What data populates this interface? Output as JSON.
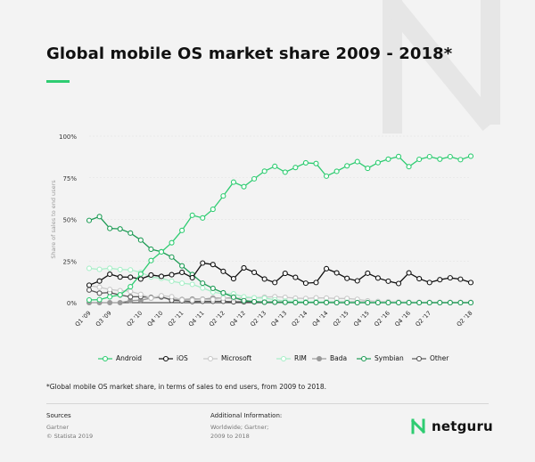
{
  "title": "Global mobile OS market share 2009 - 2018*",
  "footnote": "*Global mobile OS market share, in terms of sales to end users, from 2009 to 2018.",
  "sources": {
    "heading": "Sources",
    "lines": [
      "Gartner",
      "© Statista 2019"
    ]
  },
  "additional": {
    "heading": "Additional Information:",
    "lines": [
      "Worldwide; Gartner;",
      "2009 to 2018"
    ]
  },
  "brand": "netguru",
  "colors": {
    "accent": "#2ecc71",
    "background": "#f3f3f3"
  },
  "chart_data": {
    "type": "line",
    "ylabel": "Share of sales to end users",
    "yticks": [
      "0%",
      "25%",
      "50%",
      "75%",
      "100%"
    ],
    "ylim": [
      0,
      100
    ],
    "x": [
      "Q1 '09",
      "Q2 '09",
      "Q3 '09",
      "Q4 '09",
      "Q1 '10",
      "Q2 '10",
      "Q3 '10",
      "Q4 '10",
      "Q1 '11",
      "Q2 '11",
      "Q3 '11",
      "Q4 '11",
      "Q1 '12",
      "Q2 '12",
      "Q3 '12",
      "Q4 '12",
      "Q1 '13",
      "Q2 '13",
      "Q3 '13",
      "Q4 '13",
      "Q1 '14",
      "Q2 '14",
      "Q3 '14",
      "Q4 '14",
      "Q1 '15",
      "Q2 '15",
      "Q3 '15",
      "Q4 '15",
      "Q1 '16",
      "Q2 '16",
      "Q3 '16",
      "Q4 '16",
      "Q1 '17",
      "Q2 '17",
      "Q3 '17",
      "Q4 '17",
      "Q1 '18",
      "Q2 '18"
    ],
    "xtick_labels": [
      "Q1 '09",
      "Q3 '09",
      "Q2 '10",
      "Q4 '10",
      "Q2 '11",
      "Q4 '11",
      "Q2 '12",
      "Q4 '12",
      "Q2 '13",
      "Q4 '13",
      "Q2 '14",
      "Q4 '14",
      "Q2 '15",
      "Q4 '15",
      "Q2 '16",
      "Q4 '16",
      "Q2 '17",
      "Q2 '18"
    ],
    "grid": "horizontal",
    "legend_position": "bottom",
    "series": [
      {
        "name": "Android",
        "color": "#2ecc71",
        "marker_fill": "#ffffff",
        "values": [
          1.6,
          1.8,
          3.5,
          4.7,
          9.6,
          17.2,
          25.3,
          30.5,
          36.0,
          43.4,
          52.5,
          50.9,
          56.1,
          64.1,
          72.4,
          69.7,
          74.4,
          79.0,
          81.9,
          78.4,
          81.2,
          84.0,
          83.6,
          76.0,
          78.9,
          82.2,
          84.7,
          80.7,
          84.1,
          86.2,
          87.8,
          81.7,
          86.1,
          87.7,
          86.2,
          87.7,
          85.9,
          88.0
        ]
      },
      {
        "name": "iOS",
        "color": "#111111",
        "marker_fill": "#ffffff",
        "values": [
          10.5,
          13.0,
          17.1,
          15.4,
          15.3,
          14.2,
          16.6,
          15.8,
          16.8,
          18.2,
          15.0,
          23.8,
          22.9,
          18.8,
          14.4,
          20.9,
          18.2,
          14.2,
          12.1,
          17.6,
          15.2,
          11.7,
          12.1,
          20.4,
          17.9,
          14.6,
          13.1,
          17.7,
          14.8,
          12.9,
          11.5,
          17.9,
          14.4,
          12.1,
          13.8,
          14.9,
          14.1,
          12.1
        ]
      },
      {
        "name": "Microsoft",
        "color": "#c8c8c8",
        "marker_fill": "#ffffff",
        "values": [
          10.2,
          9.3,
          7.9,
          7.2,
          6.8,
          5.0,
          2.8,
          4.2,
          3.6,
          1.6,
          1.5,
          1.9,
          1.9,
          2.7,
          2.4,
          3.0,
          2.9,
          3.3,
          3.6,
          3.2,
          2.7,
          2.5,
          2.9,
          2.8,
          2.5,
          2.5,
          2.0,
          1.1,
          0.7,
          0.6,
          0.4,
          0.3,
          0.2,
          0.1,
          0.1,
          0.1,
          0.1,
          0.1
        ]
      },
      {
        "name": "RIM",
        "color": "#a8efc8",
        "marker_fill": "#ffffff",
        "values": [
          20.6,
          20.0,
          20.7,
          19.9,
          19.7,
          18.2,
          15.4,
          14.6,
          12.9,
          11.7,
          11.0,
          8.8,
          6.4,
          5.2,
          5.3,
          3.5,
          2.9,
          2.7,
          1.8,
          1.0,
          0.8,
          0.5,
          0.5,
          0.4,
          0.3,
          0.3,
          0.2,
          0.2,
          0.2,
          0.1,
          0.1,
          0.1,
          0.0,
          0.0,
          0.0,
          0.0,
          0.0,
          0.0
        ]
      },
      {
        "name": "Bada",
        "color": "#999999",
        "marker_fill": "#999999",
        "values": [
          0,
          0,
          0,
          0,
          1.2,
          1.5,
          2.7,
          3.3,
          1.9,
          1.9,
          2.2,
          2.1,
          2.7,
          2.7,
          3.0,
          1.3,
          0.7,
          0.4,
          0.3,
          0.2,
          0.1,
          0.1,
          0.1,
          0.1,
          0,
          0,
          0,
          0,
          0,
          0,
          0,
          0,
          0,
          0,
          0,
          0,
          0,
          0
        ]
      },
      {
        "name": "Symbian",
        "color": "#1e9b55",
        "marker_fill": "#ffffff",
        "values": [
          49.4,
          51.7,
          44.6,
          44.3,
          41.8,
          37.6,
          32.1,
          30.6,
          27.4,
          22.1,
          16.9,
          11.7,
          8.6,
          5.9,
          3.3,
          1.2,
          0.6,
          0.3,
          0.3,
          0.2,
          0.1,
          0.1,
          0.1,
          0.1,
          0,
          0,
          0,
          0,
          0,
          0,
          0,
          0,
          0,
          0,
          0,
          0,
          0,
          0
        ]
      },
      {
        "name": "Other",
        "color": "#555555",
        "marker_fill": "#ffffff",
        "values": [
          7.6,
          5.7,
          6.1,
          4.6,
          3.5,
          3.6,
          3.1,
          3.6,
          1.4,
          1.1,
          0.7,
          0.8,
          0.8,
          0.8,
          0.5,
          0.5,
          0.4,
          0.3,
          0.3,
          0.4,
          0.4,
          0.3,
          0.4,
          0.4,
          0.4,
          0.4,
          0.3,
          0.3,
          0.2,
          0.2,
          0.2,
          0.1,
          0.1,
          0.1,
          0.1,
          0.1,
          0.1,
          0.1
        ]
      }
    ]
  }
}
